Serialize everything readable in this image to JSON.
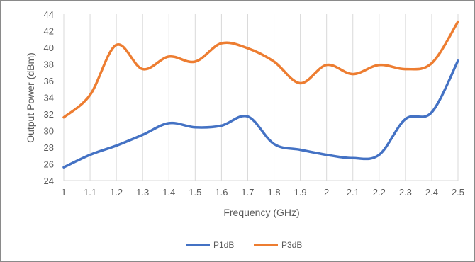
{
  "chart_data": {
    "type": "line",
    "title": "",
    "xlabel": "Frequency (GHz)",
    "ylabel": "Output Power (dBm)",
    "xlim": [
      1,
      2.5
    ],
    "ylim": [
      24,
      44
    ],
    "x_ticks": [
      "1",
      "1.1",
      "1.2",
      "1.3",
      "1.4",
      "1.5",
      "1.6",
      "1.7",
      "1.8",
      "1.9",
      "2",
      "2.1",
      "2.2",
      "2.3",
      "2.4",
      "2.5"
    ],
    "y_ticks": [
      "24",
      "26",
      "28",
      "30",
      "32",
      "34",
      "36",
      "38",
      "40",
      "42",
      "44"
    ],
    "grid": "vertical",
    "legend_position": "bottom",
    "series": [
      {
        "name": "P1dB",
        "color": "#4472c4",
        "points": [
          {
            "x": 1.0,
            "y": 25.6
          },
          {
            "x": 1.1,
            "y": 27.1
          },
          {
            "x": 1.2,
            "y": 28.2
          },
          {
            "x": 1.3,
            "y": 29.5
          },
          {
            "x": 1.4,
            "y": 30.9
          },
          {
            "x": 1.5,
            "y": 30.4
          },
          {
            "x": 1.6,
            "y": 30.6
          },
          {
            "x": 1.7,
            "y": 31.7
          },
          {
            "x": 1.8,
            "y": 28.4
          },
          {
            "x": 1.9,
            "y": 27.7
          },
          {
            "x": 2.0,
            "y": 27.1
          },
          {
            "x": 2.1,
            "y": 26.7
          },
          {
            "x": 2.2,
            "y": 27.1
          },
          {
            "x": 2.3,
            "y": 31.4
          },
          {
            "x": 2.4,
            "y": 32.2
          },
          {
            "x": 2.5,
            "y": 38.4
          }
        ]
      },
      {
        "name": "P3dB",
        "color": "#ed7d31",
        "points": [
          {
            "x": 1.0,
            "y": 31.6
          },
          {
            "x": 1.1,
            "y": 34.3
          },
          {
            "x": 1.2,
            "y": 40.3
          },
          {
            "x": 1.3,
            "y": 37.4
          },
          {
            "x": 1.4,
            "y": 38.9
          },
          {
            "x": 1.5,
            "y": 38.3
          },
          {
            "x": 1.6,
            "y": 40.5
          },
          {
            "x": 1.7,
            "y": 39.9
          },
          {
            "x": 1.8,
            "y": 38.3
          },
          {
            "x": 1.9,
            "y": 35.7
          },
          {
            "x": 2.0,
            "y": 37.9
          },
          {
            "x": 2.1,
            "y": 36.8
          },
          {
            "x": 2.2,
            "y": 37.9
          },
          {
            "x": 2.3,
            "y": 37.4
          },
          {
            "x": 2.4,
            "y": 38.1
          },
          {
            "x": 2.5,
            "y": 43.1
          }
        ]
      }
    ]
  }
}
